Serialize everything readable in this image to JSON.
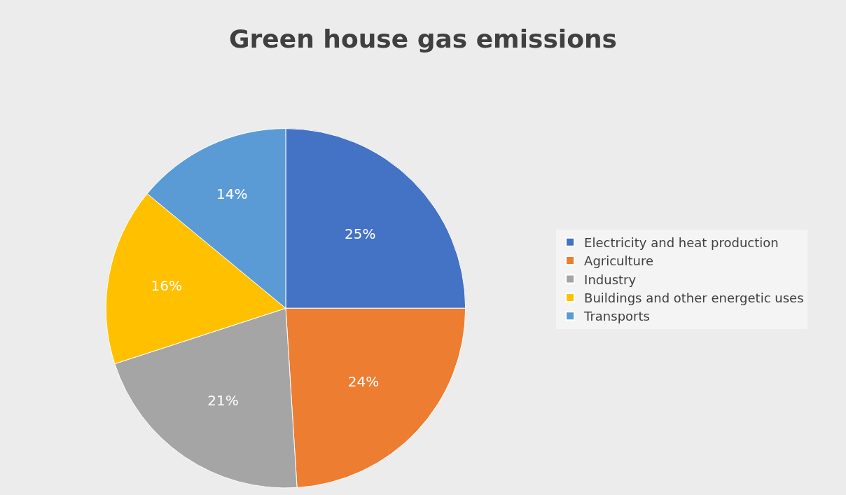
{
  "chart_data": {
    "type": "pie",
    "title": "Green house gas emissions",
    "categories": [
      "Electricity and heat production",
      "Agriculture",
      "Industry",
      "Buildings and other energetic uses",
      "Transports"
    ],
    "values": [
      25,
      24,
      21,
      16,
      14
    ],
    "value_labels": [
      "25%",
      "24%",
      "21%",
      "16%",
      "14%"
    ],
    "colors": [
      "#4472c4",
      "#ed7d31",
      "#a5a5a5",
      "#ffc000",
      "#5b9bd5"
    ],
    "legend": "right"
  }
}
